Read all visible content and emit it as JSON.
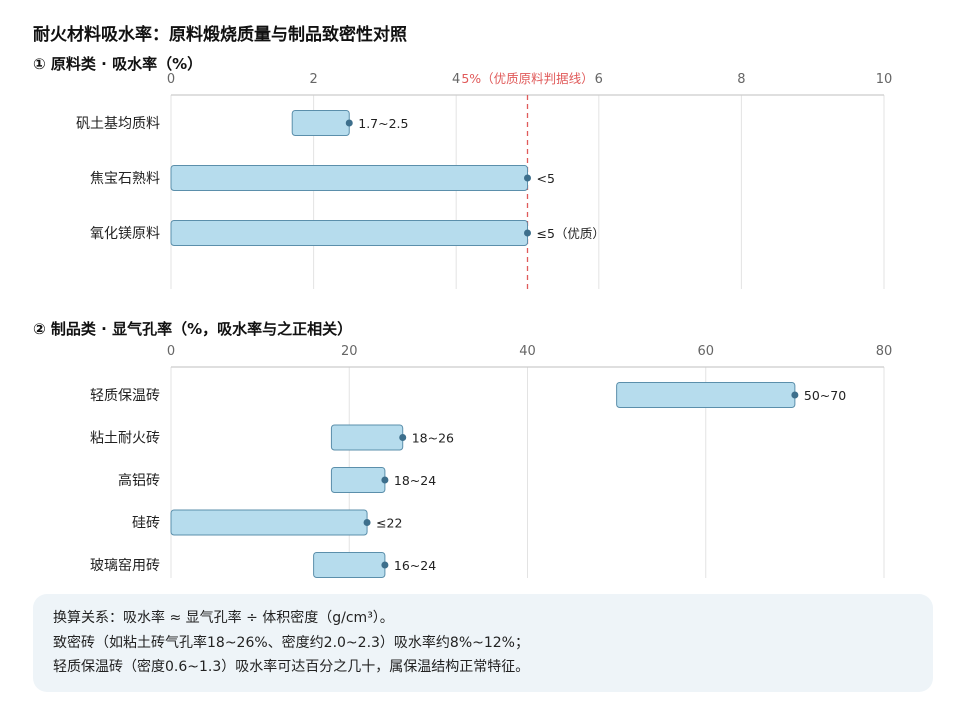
{
  "title": "耐火材料吸水率：原料煅烧质量与制品致密性对照",
  "colors": {
    "bar_fill": "#b6dced",
    "bar_stroke": "#5b8fab",
    "dot": "#3d6f8c",
    "grid": "#e3e3e3",
    "axis": "#cccccc",
    "reference": "#e05a5a"
  },
  "chart_data": [
    {
      "type": "bar",
      "orientation": "horizontal",
      "title": "① 原料类 · 吸水率（%）",
      "xlim": [
        0,
        10
      ],
      "ticks": [
        "0",
        "2",
        "4",
        "6",
        "8",
        "10"
      ],
      "reference_line": {
        "value": 5,
        "label": "5%（优质原料判据线）"
      },
      "categories": [
        "矾土基均质料",
        "焦宝石熟料",
        "氧化镁原料"
      ],
      "ranges": [
        [
          1.7,
          2.5
        ],
        [
          0,
          5
        ],
        [
          0,
          5
        ]
      ],
      "labels": [
        "1.7~2.5",
        "<5",
        "≤5（优质）"
      ]
    },
    {
      "type": "bar",
      "orientation": "horizontal",
      "title": "② 制品类 · 显气孔率（%，吸水率与之正相关）",
      "xlim": [
        0,
        80
      ],
      "ticks": [
        "0",
        "20",
        "40",
        "60",
        "80"
      ],
      "categories": [
        "轻质保温砖",
        "粘土耐火砖",
        "高铝砖",
        "硅砖",
        "玻璃窑用砖"
      ],
      "ranges": [
        [
          50,
          70
        ],
        [
          18,
          26
        ],
        [
          18,
          24
        ],
        [
          0,
          22
        ],
        [
          16,
          24
        ]
      ],
      "labels": [
        "50~70",
        "18~26",
        "18~24",
        "≤22",
        "16~24"
      ]
    }
  ],
  "note": {
    "lines": [
      "换算关系：吸水率 ≈ 显气孔率 ÷ 体积密度（g/cm³）。",
      "致密砖（如粘土砖气孔率18~26%、密度约2.0~2.3）吸水率约8%~12%；",
      "轻质保温砖（密度0.6~1.3）吸水率可达百分之几十，属保温结构正常特征。"
    ]
  }
}
